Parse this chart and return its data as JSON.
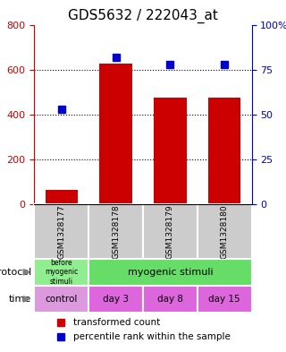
{
  "title": "GDS5632 / 222043_at",
  "samples": [
    "GSM1328177",
    "GSM1328178",
    "GSM1328179",
    "GSM1328180"
  ],
  "bar_values": [
    65,
    625,
    475,
    475
  ],
  "percentile_values": [
    53,
    82,
    78,
    78
  ],
  "bar_color": "#cc0000",
  "percentile_color": "#0000cc",
  "left_ylim": [
    0,
    800
  ],
  "right_ylim": [
    0,
    100
  ],
  "left_yticks": [
    0,
    200,
    400,
    600,
    800
  ],
  "right_yticks": [
    0,
    25,
    50,
    75,
    100
  ],
  "right_yticklabels": [
    "0",
    "25",
    "50",
    "75",
    "100%"
  ],
  "protocol_labels": [
    "before\nmyogenic\nstimuli",
    "myogenic stimuli"
  ],
  "protocol_colors": [
    "#90ee90",
    "#66dd66"
  ],
  "time_labels": [
    "control",
    "day 3",
    "day 8",
    "day 15"
  ],
  "time_color": "#dd66dd",
  "sample_bg_color": "#cccccc",
  "legend_red_label": "transformed count",
  "legend_blue_label": "percentile rank within the sample",
  "bar_width": 0.6
}
